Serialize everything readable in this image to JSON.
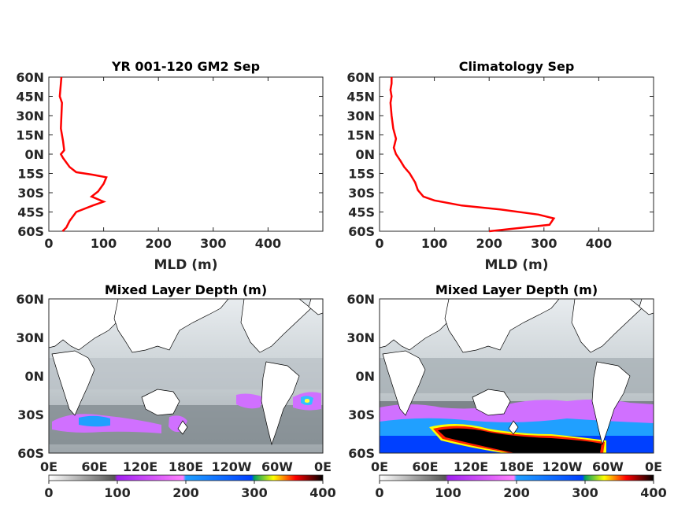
{
  "chart_data": [
    {
      "type": "line",
      "title": "YR 001-120 GM2 Sep",
      "xlabel": "MLD (m)",
      "ylabel": "",
      "xlim": [
        0,
        500
      ],
      "ylim": [
        -60,
        60
      ],
      "xticks": [
        "0",
        "100",
        "200",
        "300",
        "400"
      ],
      "yticks": [
        "60N",
        "45N",
        "30N",
        "15N",
        "0N",
        "15S",
        "30S",
        "45S",
        "60S"
      ],
      "series": [
        {
          "color": "#ff0000",
          "x": [
            25,
            32,
            38,
            50,
            80,
            100,
            78,
            90,
            100,
            105,
            80,
            50,
            38,
            26,
            22,
            28,
            26,
            22,
            23,
            24,
            20,
            21,
            22,
            23
          ],
          "y": [
            -62,
            -57,
            -52,
            -45,
            -40,
            -37,
            -33,
            -29,
            -23,
            -18,
            -16,
            -14,
            -10,
            -3,
            0,
            3,
            10,
            20,
            30,
            40,
            45,
            50,
            55,
            60
          ]
        }
      ]
    },
    {
      "type": "line",
      "title": "Climatology Sep",
      "xlabel": "MLD (m)",
      "ylabel": "",
      "xlim": [
        0,
        500
      ],
      "ylim": [
        -60,
        60
      ],
      "xticks": [
        "0",
        "100",
        "200",
        "300",
        "400"
      ],
      "yticks": [
        "60N",
        "45N",
        "30N",
        "15N",
        "0N",
        "15S",
        "30S",
        "45S",
        "60S"
      ],
      "series": [
        {
          "color": "#ff0000",
          "x": [
            200,
            310,
            318,
            290,
            220,
            150,
            100,
            80,
            70,
            65,
            55,
            45,
            38,
            30,
            26,
            30,
            25,
            22,
            20,
            22,
            20,
            22,
            22
          ],
          "y": [
            -62,
            -55,
            -50,
            -47,
            -43,
            -40,
            -36,
            -33,
            -28,
            -22,
            -15,
            -10,
            -5,
            0,
            5,
            12,
            20,
            30,
            40,
            45,
            50,
            55,
            60
          ]
        }
      ]
    },
    {
      "type": "heatmap",
      "title": "Mixed Layer Depth (m)",
      "xticks": [
        "0E",
        "60E",
        "120E",
        "180E",
        "120W",
        "60W",
        "0E"
      ],
      "yticks": [
        "60N",
        "30N",
        "0N",
        "30S",
        "60S"
      ],
      "colorbar": {
        "ticks": [
          "0",
          "100",
          "200",
          "300",
          "400"
        ],
        "range": [
          0,
          400
        ],
        "colors": [
          "#ffffff",
          "#555555",
          "#a020f0",
          "#ff80ff",
          "#20a0ff",
          "#0040ff",
          "#00a060",
          "#ffff00",
          "#ff0000",
          "#000000"
        ]
      }
    },
    {
      "type": "heatmap",
      "title": "Mixed Layer Depth (m)",
      "xticks": [
        "0E",
        "60E",
        "120E",
        "180E",
        "120W",
        "60W",
        "0E"
      ],
      "yticks": [
        "60N",
        "30N",
        "0N",
        "30S",
        "60S"
      ],
      "colorbar": {
        "ticks": [
          "0",
          "100",
          "200",
          "300",
          "400"
        ],
        "range": [
          0,
          400
        ],
        "colors": [
          "#ffffff",
          "#555555",
          "#a020f0",
          "#ff80ff",
          "#20a0ff",
          "#0040ff",
          "#00a060",
          "#ffff00",
          "#ff0000",
          "#000000"
        ]
      }
    }
  ]
}
